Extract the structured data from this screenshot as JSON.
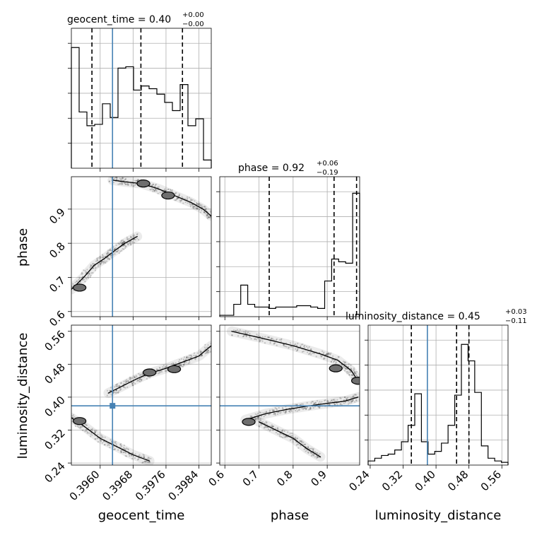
{
  "figure": {
    "titles": {
      "geocent_time": {
        "main": "geocent_time = 0.40",
        "sup": "+0.00",
        "sub": "−0.00"
      },
      "phase": {
        "main": "phase = 0.92",
        "sup": "+0.06",
        "sub": "−0.19"
      },
      "luminosity_distance": {
        "main": "luminosity_distance = 0.45",
        "sup": "+0.03",
        "sub": "−0.11"
      }
    },
    "axis_labels": {
      "x_geocent_time": "geocent_time",
      "x_phase": "phase",
      "x_luminosity_distance": "luminosity_distance",
      "y_phase": "phase",
      "y_luminosity_distance": "luminosity_distance"
    },
    "colors": {
      "truth": "#4682b4",
      "line": "#000000",
      "grid": "#b0b0b0"
    }
  },
  "chart_data": {
    "type": "corner",
    "parameters": [
      "geocent_time",
      "phase",
      "luminosity_distance"
    ],
    "ranges": {
      "geocent_time": [
        0.3953,
        0.3987
      ],
      "phase": [
        0.585,
        0.995
      ],
      "luminosity_distance": [
        0.235,
        0.575
      ]
    },
    "truths": {
      "geocent_time": 0.3963,
      "luminosity_distance": 0.379
    },
    "quantiles": {
      "geocent_time": [
        0.3958,
        0.39699,
        0.398
      ],
      "phase": [
        0.73,
        0.92,
        0.986
      ],
      "luminosity_distance": [
        0.34,
        0.45,
        0.48
      ]
    },
    "ticks": {
      "geocent_time": {
        "values": [
          0.396,
          0.3968,
          0.3976,
          0.3984
        ],
        "labels": [
          "0.3960",
          "0.3968",
          "0.3976",
          "0.3984"
        ]
      },
      "phase": {
        "values": [
          0.6,
          0.7,
          0.8,
          0.9
        ],
        "labels": [
          "0.6",
          "0.7",
          "0.8",
          "0.9"
        ]
      },
      "luminosity_distance": {
        "values": [
          0.24,
          0.32,
          0.4,
          0.48,
          0.56
        ],
        "labels": [
          "0.24",
          "0.32",
          "0.40",
          "0.48",
          "0.56"
        ]
      }
    },
    "histograms": {
      "geocent_time": [
        0.88,
        0.41,
        0.31,
        0.32,
        0.47,
        0.37,
        0.73,
        0.74,
        0.57,
        0.6,
        0.58,
        0.54,
        0.48,
        0.42,
        0.61,
        0.31,
        0.36,
        0.06
      ],
      "phase": [
        0.01,
        0.01,
        0.09,
        0.23,
        0.09,
        0.07,
        0.07,
        0.06,
        0.07,
        0.07,
        0.07,
        0.08,
        0.08,
        0.07,
        0.06,
        0.26,
        0.42,
        0.4,
        0.39,
        0.9
      ],
      "luminosity_distance": [
        0.03,
        0.05,
        0.07,
        0.08,
        0.11,
        0.17,
        0.29,
        0.52,
        0.17,
        0.08,
        0.1,
        0.16,
        0.29,
        0.51,
        0.88,
        0.76,
        0.53,
        0.14,
        0.05,
        0.03,
        0.02
      ]
    },
    "density_ridges": {
      "geocent_time_vs_phase": [
        {
          "x": [
            0.3953,
            0.3956,
            0.39585,
            0.3961,
            0.39635,
            0.3966,
            0.3969
          ],
          "y": [
            0.665,
            0.7,
            0.735,
            0.755,
            0.778,
            0.8,
            0.82
          ]
        },
        {
          "x": [
            0.3963,
            0.3966,
            0.397,
            0.3974,
            0.3978,
            0.3982,
            0.3985,
            0.3987
          ],
          "y": [
            0.985,
            0.98,
            0.975,
            0.96,
            0.94,
            0.92,
            0.9,
            0.88
          ]
        }
      ],
      "geocent_time_vs_luminosity_distance": [
        {
          "x": [
            0.3962,
            0.3965,
            0.3969,
            0.3972,
            0.3976,
            0.398,
            0.3984,
            0.3987
          ],
          "y": [
            0.41,
            0.425,
            0.445,
            0.458,
            0.47,
            0.485,
            0.5,
            0.525
          ]
        },
        {
          "x": [
            0.3953,
            0.3956,
            0.396,
            0.3964,
            0.3968,
            0.3972
          ],
          "y": [
            0.35,
            0.33,
            0.3,
            0.28,
            0.26,
            0.245
          ]
        }
      ],
      "phase_vs_luminosity_distance": [
        {
          "x": [
            0.62,
            0.7,
            0.8,
            0.88,
            0.93,
            0.97,
            0.99
          ],
          "y": [
            0.56,
            0.545,
            0.525,
            0.505,
            0.49,
            0.465,
            0.44
          ]
        },
        {
          "x": [
            0.66,
            0.72,
            0.78,
            0.84,
            0.9,
            0.95,
            0.99
          ],
          "y": [
            0.345,
            0.36,
            0.37,
            0.378,
            0.385,
            0.39,
            0.4
          ]
        },
        {
          "x": [
            0.7,
            0.75,
            0.8,
            0.84,
            0.88
          ],
          "y": [
            0.34,
            0.32,
            0.3,
            0.275,
            0.255
          ]
        }
      ]
    },
    "contour_centers": {
      "geocent_time_vs_phase": [
        {
          "x": 0.3955,
          "y": 0.67
        },
        {
          "x": 0.39705,
          "y": 0.975
        },
        {
          "x": 0.39765,
          "y": 0.94
        }
      ],
      "geocent_time_vs_luminosity_distance": [
        {
          "x": 0.3972,
          "y": 0.46
        },
        {
          "x": 0.3978,
          "y": 0.468
        },
        {
          "x": 0.3955,
          "y": 0.342
        }
      ],
      "phase_vs_luminosity_distance": [
        {
          "x": 0.925,
          "y": 0.47
        },
        {
          "x": 0.99,
          "y": 0.44
        },
        {
          "x": 0.67,
          "y": 0.34
        }
      ]
    }
  }
}
